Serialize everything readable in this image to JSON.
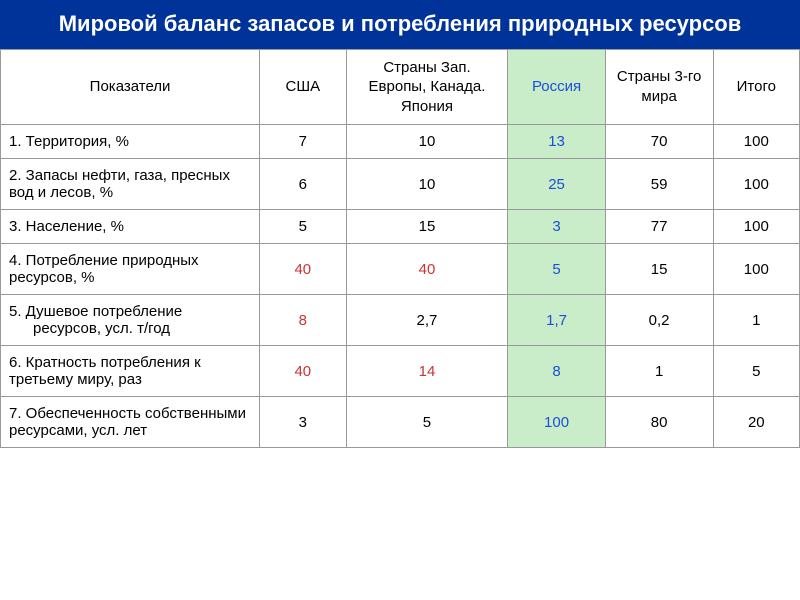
{
  "title": "Мировой баланс запасов и потребления природных ресурсов",
  "columns": {
    "indicator": "Показатели",
    "usa": "США",
    "europe": "Страны Зап. Европы, Канада. Япония",
    "russia": "Россия",
    "third": "Страны 3-го мира",
    "total": "Итого"
  },
  "rows": [
    {
      "label": "1. Территория, %",
      "usa": "7",
      "europe": "10",
      "russia": "13",
      "third": "70",
      "total": "100",
      "usa_red": false,
      "europe_red": false,
      "russia_blue": true
    },
    {
      "label": "2. Запасы нефти, газа, пресных вод и лесов, %",
      "usa": "6",
      "europe": "10",
      "russia": "25",
      "third": "59",
      "total": "100",
      "usa_red": false,
      "europe_red": false,
      "russia_blue": true
    },
    {
      "label": "3. Население, %",
      "usa": "5",
      "europe": "15",
      "russia": "3",
      "third": "77",
      "total": "100",
      "usa_red": false,
      "europe_red": false,
      "russia_blue": true
    },
    {
      "label": "4. Потребление природных ресурсов, %",
      "usa": "40",
      "europe": "40",
      "russia": "5",
      "third": "15",
      "total": "100",
      "usa_red": true,
      "europe_red": true,
      "russia_blue": true
    },
    {
      "label": "5. Душевое потребление",
      "label2": "ресурсов,  усл. т/год",
      "usa": "8",
      "europe": "2,7",
      "russia": "1,7",
      "third": "0,2",
      "total": "1",
      "usa_red": true,
      "europe_red": false,
      "russia_blue": true
    },
    {
      "label": "6. Кратность потребления к третьему миру,   раз",
      "usa": "40",
      "europe": "14",
      "russia": "8",
      "third": "1",
      "total": "5",
      "usa_red": true,
      "europe_red": true,
      "russia_blue": true
    },
    {
      "label": "7. Обеспеченность собственными ресурсами,  усл. лет",
      "usa": "3",
      "europe": "5",
      "russia": "100",
      "third": "80",
      "total": "20",
      "usa_red": false,
      "europe_red": false,
      "russia_blue": true
    }
  ],
  "style": {
    "header_bg": "#003399",
    "header_text": "#ffffff",
    "russia_col_bg": "#c9ecc9",
    "red_value": "#cc3333",
    "blue_value": "#1a4fd6",
    "border_color": "#999999"
  }
}
